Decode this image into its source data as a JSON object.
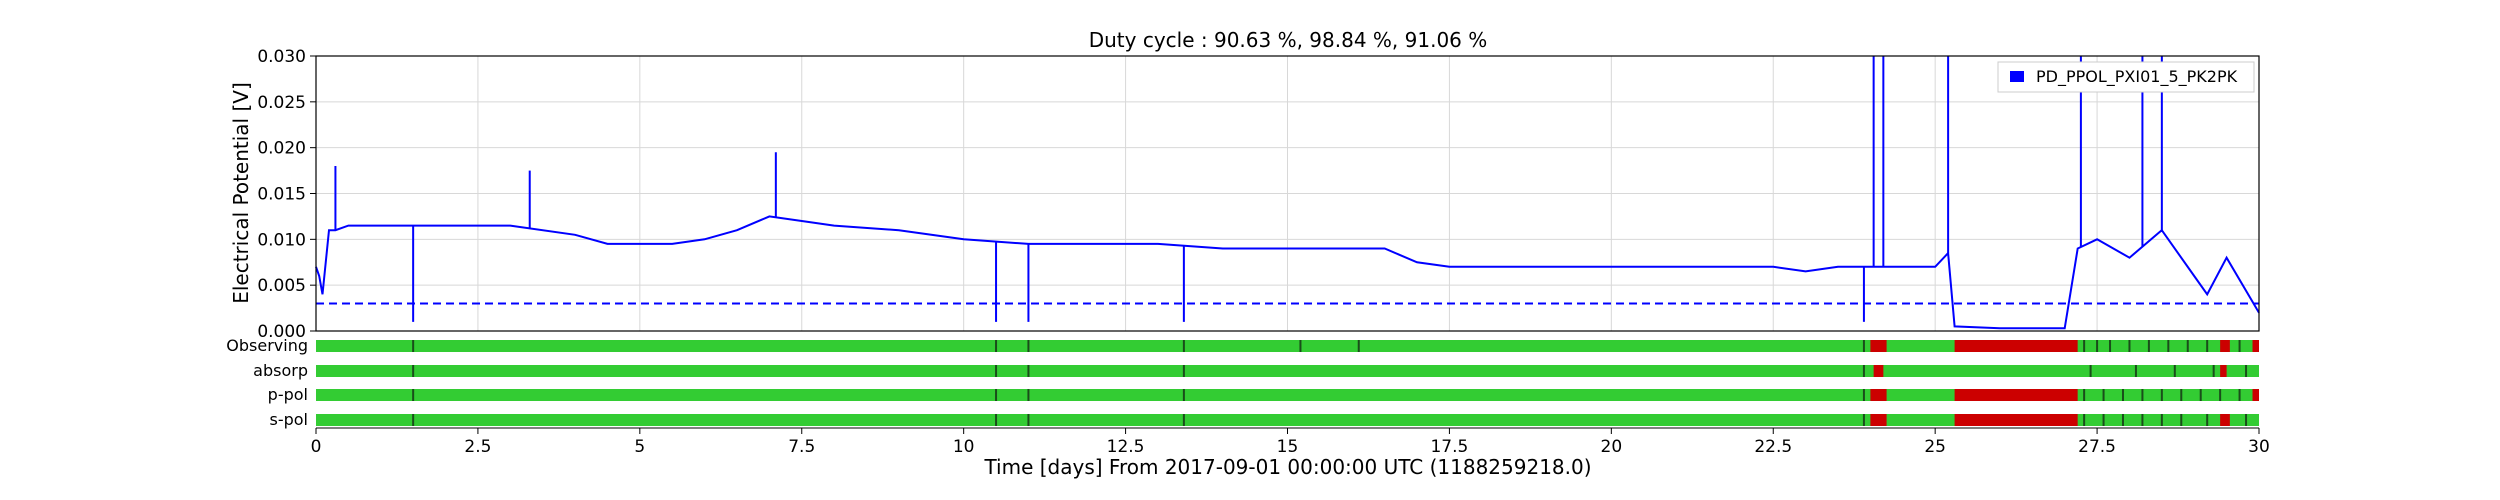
{
  "chart_data": {
    "type": "line",
    "title": "Duty cycle : 90.63 %, 98.84 %, 91.06 %",
    "xlabel": "Time [days] From 2017-09-01 00:00:00 UTC (1188259218.0)",
    "ylabel": "Electrical Potential [V]",
    "xlim": [
      0,
      30
    ],
    "ylim": [
      0,
      0.03
    ],
    "x_ticks": [
      0,
      2.5,
      5,
      7.5,
      10,
      12.5,
      15,
      17.5,
      20,
      22.5,
      25,
      27.5,
      30
    ],
    "x_tick_labels": [
      "0",
      "2.5",
      "5",
      "7.5",
      "10",
      "12.5",
      "15",
      "17.5",
      "20",
      "22.5",
      "25",
      "27.5",
      "30"
    ],
    "y_ticks": [
      0,
      0.005,
      0.01,
      0.015,
      0.02,
      0.025,
      0.03
    ],
    "y_tick_labels": [
      "0.000",
      "0.005",
      "0.010",
      "0.015",
      "0.020",
      "0.025",
      "0.030"
    ],
    "grid": true,
    "legend_position": "top-right",
    "series": [
      {
        "name": "PD_PPOL_PXI01_5_PK2PK",
        "color": "#0000ff",
        "x": [
          0,
          0.05,
          0.1,
          0.2,
          0.3,
          0.5,
          1,
          1.5,
          2,
          3,
          4,
          4.5,
          5,
          5.5,
          6,
          6.5,
          7,
          7.5,
          8,
          9,
          10,
          11,
          12,
          13,
          14,
          15,
          16,
          16.5,
          17,
          17.5,
          18,
          19,
          20,
          21,
          22,
          22.5,
          23,
          23.5,
          24,
          24.5,
          25,
          25.2,
          25.3,
          26,
          27,
          27.2,
          27.5,
          28,
          28.5,
          29,
          29.2,
          29.5,
          30
        ],
        "y": [
          0.007,
          0.006,
          0.004,
          0.011,
          0.011,
          0.0115,
          0.0115,
          0.0115,
          0.0115,
          0.0115,
          0.0105,
          0.0095,
          0.0095,
          0.0095,
          0.01,
          0.011,
          0.0125,
          0.012,
          0.0115,
          0.011,
          0.01,
          0.0095,
          0.0095,
          0.0095,
          0.009,
          0.009,
          0.009,
          0.009,
          0.0075,
          0.007,
          0.007,
          0.007,
          0.007,
          0.007,
          0.007,
          0.007,
          0.0065,
          0.007,
          0.007,
          0.007,
          0.007,
          0.0085,
          0.0005,
          0.0003,
          0.0003,
          0.009,
          0.01,
          0.008,
          0.011,
          0.006,
          0.004,
          0.008,
          0.002
        ]
      }
    ],
    "spikes": [
      {
        "x": 0.3,
        "y": 0.018
      },
      {
        "x": 1.5,
        "y": 0.001
      },
      {
        "x": 3.3,
        "y": 0.0175
      },
      {
        "x": 7.1,
        "y": 0.0195
      },
      {
        "x": 10.5,
        "y": 0.001
      },
      {
        "x": 11.0,
        "y": 0.001
      },
      {
        "x": 13.4,
        "y": 0.001
      },
      {
        "x": 23.9,
        "y": 0.001
      },
      {
        "x": 24.05,
        "y": 0.03
      },
      {
        "x": 24.2,
        "y": 0.03
      },
      {
        "x": 25.2,
        "y": 0.03
      },
      {
        "x": 27.25,
        "y": 0.03
      },
      {
        "x": 28.2,
        "y": 0.03
      },
      {
        "x": 28.5,
        "y": 0.03
      }
    ],
    "threshold": {
      "value": 0.003,
      "style": "dashed",
      "color": "#0000ff"
    },
    "state_rows": [
      {
        "label": "Observing",
        "active_color": "#33cc33",
        "inactive_color": "#cc0000",
        "inactive_segments": [
          [
            24.0,
            24.25
          ],
          [
            25.3,
            27.2
          ],
          [
            29.4,
            29.55
          ],
          [
            29.9,
            30.0
          ]
        ],
        "dark_marks": [
          1.5,
          10.5,
          11.0,
          13.4,
          15.2,
          16.1,
          23.9,
          27.3,
          27.5,
          27.7,
          28.0,
          28.3,
          28.6,
          28.9,
          29.2,
          29.7
        ]
      },
      {
        "label": "absorp",
        "active_color": "#33cc33",
        "inactive_color": "#cc0000",
        "inactive_segments": [
          [
            24.05,
            24.2
          ],
          [
            29.4,
            29.5
          ]
        ],
        "dark_marks": [
          1.5,
          10.5,
          11.0,
          13.4,
          23.9,
          27.4,
          28.1,
          28.7,
          29.3,
          29.8
        ]
      },
      {
        "label": "p-pol",
        "active_color": "#33cc33",
        "inactive_color": "#cc0000",
        "inactive_segments": [
          [
            24.0,
            24.25
          ],
          [
            25.3,
            27.2
          ],
          [
            29.9,
            30.0
          ]
        ],
        "dark_marks": [
          1.5,
          10.5,
          11.0,
          13.4,
          23.9,
          27.3,
          27.6,
          27.9,
          28.2,
          28.5,
          28.8,
          29.1,
          29.4,
          29.7
        ]
      },
      {
        "label": "s-pol",
        "active_color": "#33cc33",
        "inactive_color": "#cc0000",
        "inactive_segments": [
          [
            24.0,
            24.25
          ],
          [
            25.3,
            27.2
          ],
          [
            29.4,
            29.55
          ]
        ],
        "dark_marks": [
          1.5,
          10.5,
          11.0,
          13.4,
          23.9,
          27.3,
          27.6,
          27.9,
          28.2,
          28.5,
          28.8,
          29.2,
          29.8
        ]
      }
    ]
  }
}
